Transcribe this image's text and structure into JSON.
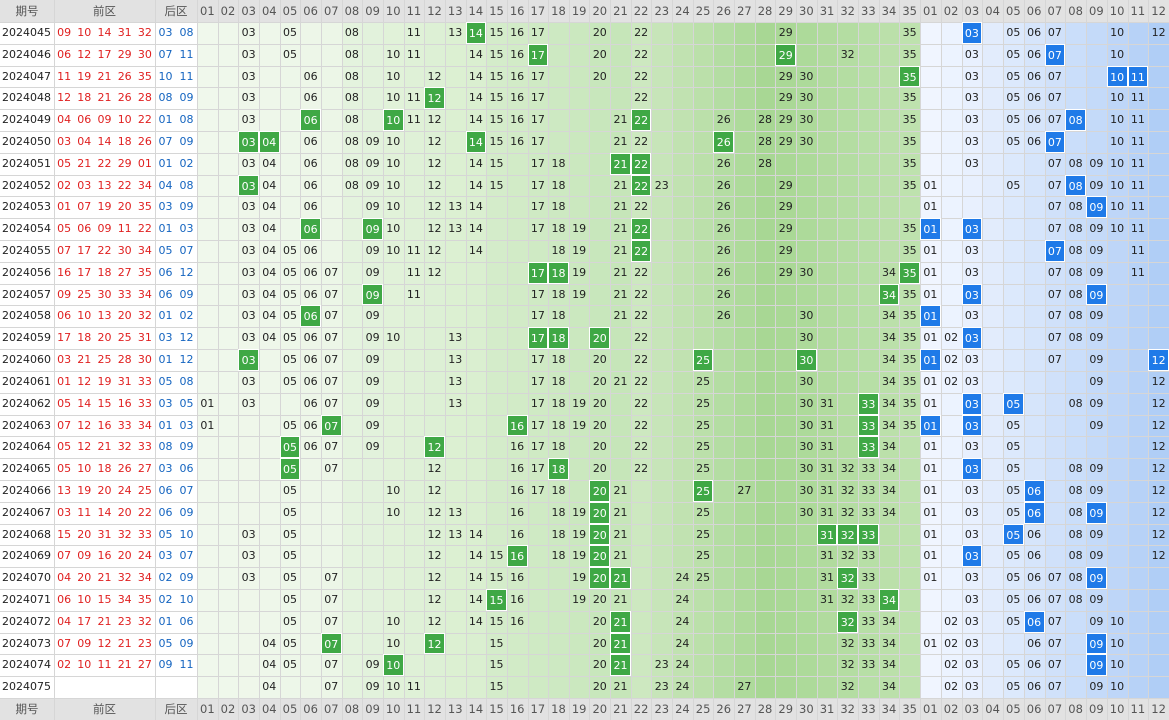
{
  "header": {
    "period": "期号",
    "front": "前区",
    "back": "后区",
    "front_numbers": [
      "01",
      "02",
      "03",
      "04",
      "05",
      "06",
      "07",
      "08",
      "09",
      "10",
      "11",
      "12",
      "13",
      "14",
      "15",
      "16",
      "17",
      "18",
      "19",
      "20",
      "21",
      "22",
      "23",
      "24",
      "25",
      "26",
      "27",
      "28",
      "29",
      "30",
      "31",
      "32",
      "33",
      "34",
      "35"
    ],
    "back_numbers": [
      "01",
      "02",
      "03",
      "04",
      "05",
      "06",
      "07",
      "08",
      "09",
      "10",
      "11",
      "12"
    ]
  },
  "rows": [
    {
      "period": "2024045",
      "front": [
        "09",
        "10",
        "14",
        "31",
        "32"
      ],
      "back": [
        "03",
        "08"
      ],
      "front_cells": [
        "03",
        "05",
        "08",
        "11",
        "13",
        "15",
        "16",
        "17",
        "20",
        "22",
        "29",
        "35"
      ],
      "front_hits": [
        "14"
      ],
      "back_cells": [
        "05",
        "06",
        "07",
        "10",
        "12"
      ],
      "back_hits": [
        "03"
      ]
    },
    {
      "period": "2024046",
      "front": [
        "06",
        "12",
        "17",
        "29",
        "30"
      ],
      "back": [
        "07",
        "11"
      ],
      "front_cells": [
        "03",
        "05",
        "08",
        "10",
        "11",
        "14",
        "15",
        "16",
        "20",
        "22",
        "32",
        "35"
      ],
      "front_hits": [
        "17",
        "29"
      ],
      "back_cells": [
        "03",
        "05",
        "06",
        "10"
      ],
      "back_hits": [
        "07"
      ]
    },
    {
      "period": "2024047",
      "front": [
        "11",
        "19",
        "21",
        "26",
        "35"
      ],
      "back": [
        "10",
        "11"
      ],
      "front_cells": [
        "03",
        "06",
        "08",
        "10",
        "12",
        "14",
        "15",
        "16",
        "17",
        "20",
        "22",
        "29",
        "30"
      ],
      "front_hits": [
        "35"
      ],
      "back_cells": [
        "03",
        "05",
        "06",
        "07"
      ],
      "back_hits": [
        "10",
        "11"
      ]
    },
    {
      "period": "2024048",
      "front": [
        "12",
        "18",
        "21",
        "26",
        "28"
      ],
      "back": [
        "08",
        "09"
      ],
      "front_cells": [
        "03",
        "06",
        "08",
        "10",
        "11",
        "14",
        "15",
        "16",
        "17",
        "22",
        "29",
        "30",
        "35"
      ],
      "front_hits": [
        "12"
      ],
      "back_cells": [
        "03",
        "05",
        "06",
        "07",
        "10",
        "11"
      ],
      "back_hits": []
    },
    {
      "period": "2024049",
      "front": [
        "04",
        "06",
        "09",
        "10",
        "22"
      ],
      "back": [
        "01",
        "08"
      ],
      "front_cells": [
        "03",
        "08",
        "11",
        "12",
        "14",
        "15",
        "16",
        "17",
        "21",
        "26",
        "28",
        "29",
        "30",
        "35"
      ],
      "front_hits": [
        "06",
        "10",
        "22"
      ],
      "back_cells": [
        "03",
        "05",
        "06",
        "07",
        "10",
        "11"
      ],
      "back_hits": [
        "08"
      ]
    },
    {
      "period": "2024050",
      "front": [
        "03",
        "04",
        "14",
        "18",
        "26"
      ],
      "back": [
        "07",
        "09"
      ],
      "front_cells": [
        "06",
        "08",
        "09",
        "10",
        "12",
        "15",
        "16",
        "17",
        "21",
        "22",
        "28",
        "29",
        "30",
        "35"
      ],
      "front_hits": [
        "03",
        "04",
        "14",
        "26"
      ],
      "back_cells": [
        "03",
        "05",
        "06",
        "10",
        "11"
      ],
      "back_hits": [
        "07"
      ]
    },
    {
      "period": "2024051",
      "front": [
        "05",
        "21",
        "22",
        "29",
        "01"
      ],
      "back": [
        "01",
        "02"
      ],
      "front_cells": [
        "03",
        "04",
        "06",
        "08",
        "09",
        "10",
        "12",
        "14",
        "15",
        "17",
        "18",
        "26",
        "28",
        "35"
      ],
      "front_hits": [
        "21",
        "22"
      ],
      "back_cells": [
        "03",
        "07",
        "08",
        "09",
        "10",
        "11"
      ],
      "back_hits": []
    },
    {
      "period": "2024052",
      "front": [
        "02",
        "03",
        "13",
        "22",
        "34"
      ],
      "back": [
        "04",
        "08"
      ],
      "front_cells": [
        "04",
        "06",
        "08",
        "09",
        "10",
        "12",
        "14",
        "15",
        "17",
        "18",
        "21",
        "23",
        "26",
        "29",
        "35"
      ],
      "front_hits": [
        "03",
        "22"
      ],
      "back_cells": [
        "01",
        "05",
        "07",
        "09",
        "10",
        "11"
      ],
      "back_hits": [
        "08"
      ]
    },
    {
      "period": "2024053",
      "front": [
        "01",
        "07",
        "19",
        "20",
        "35"
      ],
      "back": [
        "03",
        "09"
      ],
      "front_cells": [
        "03",
        "04",
        "06",
        "09",
        "10",
        "12",
        "13",
        "14",
        "17",
        "18",
        "21",
        "22",
        "26",
        "29"
      ],
      "front_hits": [],
      "back_cells": [
        "01",
        "07",
        "08",
        "10",
        "11"
      ],
      "back_hits": [
        "09"
      ]
    },
    {
      "period": "2024054",
      "front": [
        "05",
        "06",
        "09",
        "11",
        "22"
      ],
      "back": [
        "01",
        "03"
      ],
      "front_cells": [
        "03",
        "04",
        "10",
        "12",
        "13",
        "14",
        "17",
        "18",
        "19",
        "21",
        "26",
        "29",
        "35"
      ],
      "front_hits": [
        "06",
        "09",
        "22"
      ],
      "back_cells": [
        "07",
        "08",
        "09",
        "10",
        "11"
      ],
      "back_hits": [
        "01",
        "03"
      ]
    },
    {
      "period": "2024055",
      "front": [
        "07",
        "17",
        "22",
        "30",
        "34"
      ],
      "back": [
        "05",
        "07"
      ],
      "front_cells": [
        "03",
        "04",
        "05",
        "06",
        "09",
        "10",
        "11",
        "12",
        "14",
        "18",
        "19",
        "21",
        "26",
        "29",
        "35"
      ],
      "front_hits": [
        "22"
      ],
      "back_cells": [
        "01",
        "03",
        "08",
        "09",
        "11"
      ],
      "back_hits": [
        "07"
      ]
    },
    {
      "period": "2024056",
      "front": [
        "16",
        "17",
        "18",
        "27",
        "35"
      ],
      "back": [
        "06",
        "12"
      ],
      "front_cells": [
        "03",
        "04",
        "05",
        "06",
        "07",
        "09",
        "11",
        "12",
        "19",
        "21",
        "22",
        "26",
        "29",
        "30",
        "34"
      ],
      "front_hits": [
        "17",
        "18",
        "35"
      ],
      "back_cells": [
        "01",
        "03",
        "07",
        "08",
        "09",
        "11"
      ],
      "back_hits": []
    },
    {
      "period": "2024057",
      "front": [
        "09",
        "25",
        "30",
        "33",
        "34"
      ],
      "back": [
        "06",
        "09"
      ],
      "front_cells": [
        "03",
        "04",
        "05",
        "06",
        "07",
        "11",
        "17",
        "18",
        "19",
        "21",
        "22",
        "26",
        "35"
      ],
      "front_hits": [
        "09",
        "34"
      ],
      "back_cells": [
        "01",
        "07",
        "08"
      ],
      "back_hits": [
        "03",
        "09"
      ]
    },
    {
      "period": "2024058",
      "front": [
        "06",
        "10",
        "13",
        "20",
        "32"
      ],
      "back": [
        "01",
        "02"
      ],
      "front_cells": [
        "03",
        "04",
        "05",
        "07",
        "09",
        "17",
        "18",
        "21",
        "22",
        "26",
        "30",
        "34",
        "35"
      ],
      "front_hits": [
        "06"
      ],
      "back_cells": [
        "03",
        "07",
        "08",
        "09"
      ],
      "back_hits": [
        "01"
      ]
    },
    {
      "period": "2024059",
      "front": [
        "17",
        "18",
        "20",
        "25",
        "31"
      ],
      "back": [
        "03",
        "12"
      ],
      "front_cells": [
        "03",
        "04",
        "05",
        "06",
        "07",
        "09",
        "10",
        "13",
        "22",
        "30",
        "34",
        "35"
      ],
      "front_hits": [
        "17",
        "18",
        "20"
      ],
      "back_cells": [
        "01",
        "02",
        "07",
        "08",
        "09"
      ],
      "back_hits": [
        "03"
      ]
    },
    {
      "period": "2024060",
      "front": [
        "03",
        "21",
        "25",
        "28",
        "30"
      ],
      "back": [
        "01",
        "12"
      ],
      "front_cells": [
        "05",
        "06",
        "07",
        "09",
        "13",
        "17",
        "18",
        "20",
        "22",
        "34",
        "35"
      ],
      "front_hits": [
        "03",
        "25",
        "30"
      ],
      "back_cells": [
        "02",
        "03",
        "07",
        "09"
      ],
      "back_hits": [
        "01",
        "12"
      ]
    },
    {
      "period": "2024061",
      "front": [
        "01",
        "12",
        "19",
        "31",
        "33"
      ],
      "back": [
        "05",
        "08"
      ],
      "front_cells": [
        "03",
        "05",
        "06",
        "07",
        "09",
        "13",
        "17",
        "18",
        "20",
        "21",
        "22",
        "25",
        "30",
        "34",
        "35"
      ],
      "front_hits": [],
      "back_cells": [
        "01",
        "02",
        "03",
        "09",
        "12"
      ],
      "back_hits": []
    },
    {
      "period": "2024062",
      "front": [
        "05",
        "14",
        "15",
        "16",
        "33"
      ],
      "back": [
        "03",
        "05"
      ],
      "front_cells": [
        "01",
        "03",
        "06",
        "07",
        "09",
        "13",
        "17",
        "18",
        "19",
        "20",
        "22",
        "25",
        "30",
        "31",
        "34",
        "35"
      ],
      "front_hits": [
        "33"
      ],
      "back_cells": [
        "01",
        "08",
        "09",
        "12"
      ],
      "back_hits": [
        "03",
        "05"
      ]
    },
    {
      "period": "2024063",
      "front": [
        "07",
        "12",
        "16",
        "33",
        "34"
      ],
      "back": [
        "01",
        "03"
      ],
      "front_cells": [
        "01",
        "05",
        "06",
        "09",
        "17",
        "18",
        "19",
        "20",
        "22",
        "25",
        "30",
        "31",
        "34",
        "35"
      ],
      "front_hits": [
        "07",
        "16",
        "33"
      ],
      "back_cells": [
        "05",
        "09",
        "12"
      ],
      "back_hits": [
        "01",
        "03"
      ]
    },
    {
      "period": "2024064",
      "front": [
        "05",
        "12",
        "21",
        "32",
        "33"
      ],
      "back": [
        "08",
        "09"
      ],
      "front_cells": [
        "06",
        "07",
        "09",
        "16",
        "17",
        "18",
        "20",
        "22",
        "25",
        "30",
        "31",
        "34"
      ],
      "front_hits": [
        "05",
        "12",
        "33"
      ],
      "back_cells": [
        "01",
        "03",
        "05",
        "12"
      ],
      "back_hits": []
    },
    {
      "period": "2024065",
      "front": [
        "05",
        "10",
        "18",
        "26",
        "27"
      ],
      "back": [
        "03",
        "06"
      ],
      "front_cells": [
        "07",
        "12",
        "16",
        "17",
        "20",
        "22",
        "25",
        "30",
        "31",
        "32",
        "33",
        "34"
      ],
      "front_hits": [
        "05",
        "18"
      ],
      "back_cells": [
        "01",
        "05",
        "08",
        "09",
        "12"
      ],
      "back_hits": [
        "03"
      ]
    },
    {
      "period": "2024066",
      "front": [
        "13",
        "19",
        "20",
        "24",
        "25"
      ],
      "back": [
        "06",
        "07"
      ],
      "front_cells": [
        "05",
        "10",
        "12",
        "16",
        "17",
        "18",
        "21",
        "27",
        "30",
        "31",
        "32",
        "33",
        "34"
      ],
      "front_hits": [
        "20",
        "25"
      ],
      "back_cells": [
        "01",
        "03",
        "05",
        "08",
        "09",
        "12"
      ],
      "back_hits": [
        "06"
      ]
    },
    {
      "period": "2024067",
      "front": [
        "03",
        "11",
        "14",
        "20",
        "22"
      ],
      "back": [
        "06",
        "09"
      ],
      "front_cells": [
        "05",
        "10",
        "12",
        "13",
        "16",
        "18",
        "19",
        "21",
        "25",
        "30",
        "31",
        "32",
        "33",
        "34"
      ],
      "front_hits": [
        "20"
      ],
      "back_cells": [
        "01",
        "03",
        "05",
        "08",
        "12"
      ],
      "back_hits": [
        "06",
        "09"
      ]
    },
    {
      "period": "2024068",
      "front": [
        "15",
        "20",
        "31",
        "32",
        "33"
      ],
      "back": [
        "05",
        "10"
      ],
      "front_cells": [
        "03",
        "05",
        "12",
        "13",
        "14",
        "16",
        "18",
        "19",
        "21",
        "25"
      ],
      "front_hits": [
        "20",
        "31",
        "32",
        "33"
      ],
      "back_cells": [
        "01",
        "03",
        "06",
        "08",
        "09",
        "12"
      ],
      "back_hits": [
        "05"
      ]
    },
    {
      "period": "2024069",
      "front": [
        "07",
        "09",
        "16",
        "20",
        "24"
      ],
      "back": [
        "03",
        "07"
      ],
      "front_cells": [
        "03",
        "05",
        "12",
        "14",
        "15",
        "18",
        "19",
        "21",
        "25",
        "31",
        "32",
        "33"
      ],
      "front_hits": [
        "16",
        "20"
      ],
      "back_cells": [
        "01",
        "05",
        "06",
        "08",
        "09",
        "12"
      ],
      "back_hits": [
        "03"
      ]
    },
    {
      "period": "2024070",
      "front": [
        "04",
        "20",
        "21",
        "32",
        "34"
      ],
      "back": [
        "02",
        "09"
      ],
      "front_cells": [
        "03",
        "05",
        "07",
        "12",
        "14",
        "15",
        "16",
        "19",
        "24",
        "25",
        "31",
        "33"
      ],
      "front_hits": [
        "20",
        "21",
        "32"
      ],
      "back_cells": [
        "01",
        "03",
        "05",
        "06",
        "07",
        "08"
      ],
      "back_hits": [
        "09"
      ]
    },
    {
      "period": "2024071",
      "front": [
        "06",
        "10",
        "15",
        "34",
        "35"
      ],
      "back": [
        "02",
        "10"
      ],
      "front_cells": [
        "05",
        "07",
        "12",
        "14",
        "16",
        "19",
        "20",
        "21",
        "24",
        "31",
        "32",
        "33"
      ],
      "front_hits": [
        "15",
        "34"
      ],
      "back_cells": [
        "03",
        "05",
        "06",
        "07",
        "08",
        "09"
      ],
      "back_hits": []
    },
    {
      "period": "2024072",
      "front": [
        "04",
        "17",
        "21",
        "23",
        "32"
      ],
      "back": [
        "01",
        "06"
      ],
      "front_cells": [
        "05",
        "07",
        "10",
        "12",
        "14",
        "15",
        "16",
        "20",
        "24",
        "33",
        "34"
      ],
      "front_hits": [
        "21",
        "32"
      ],
      "back_cells": [
        "02",
        "03",
        "05",
        "07",
        "09",
        "10"
      ],
      "back_hits": [
        "06"
      ]
    },
    {
      "period": "2024073",
      "front": [
        "07",
        "09",
        "12",
        "21",
        "23"
      ],
      "back": [
        "05",
        "09"
      ],
      "front_cells": [
        "04",
        "05",
        "10",
        "15",
        "20",
        "24",
        "32",
        "33",
        "34"
      ],
      "front_hits": [
        "07",
        "12",
        "21"
      ],
      "back_cells": [
        "01",
        "02",
        "03",
        "06",
        "07",
        "10"
      ],
      "back_hits": [
        "09"
      ]
    },
    {
      "period": "2024074",
      "front": [
        "02",
        "10",
        "11",
        "21",
        "27"
      ],
      "back": [
        "09",
        "11"
      ],
      "front_cells": [
        "04",
        "05",
        "07",
        "09",
        "15",
        "20",
        "23",
        "24",
        "32",
        "33",
        "34"
      ],
      "front_hits": [
        "10",
        "21"
      ],
      "back_cells": [
        "02",
        "03",
        "05",
        "06",
        "07",
        "10"
      ],
      "back_hits": [
        "09"
      ]
    },
    {
      "period": "2024075",
      "front": [],
      "back": [],
      "front_cells": [
        "04",
        "07",
        "09",
        "10",
        "11",
        "15",
        "20",
        "21",
        "23",
        "24",
        "27",
        "32",
        "34"
      ],
      "front_hits": [],
      "back_cells": [
        "02",
        "03",
        "05",
        "06",
        "07",
        "09",
        "10"
      ],
      "back_hits": []
    }
  ]
}
